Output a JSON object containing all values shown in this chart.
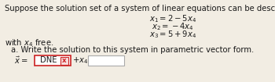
{
  "title_line": "Suppose the solution set of a system of linear equations can be described as",
  "eq1": "$x_1 = 2 - 5x_4$",
  "eq2": "$x_2 = -4x_4$",
  "eq3": "$x_3 = 5 + 9x_4$",
  "free_text": "with $x_4$ free.",
  "part_a": "a. Write the solution to this system in parametric vector form.",
  "answer_prefix": "$\\vec{x} = $",
  "dne_text": "DNE",
  "x_button": "x",
  "plus_x4": "$+x_4$",
  "bg_color": "#f2ede3",
  "text_color": "#1a1a1a",
  "box1_border_color": "#cc2222",
  "box1_bg": "#ffffff",
  "x_btn_color": "#cc2222",
  "x_btn_bg": "#f8dddd",
  "box2_border_color": "#aaaaaa",
  "box2_bg": "#ffffff",
  "fs_main": 7.2
}
